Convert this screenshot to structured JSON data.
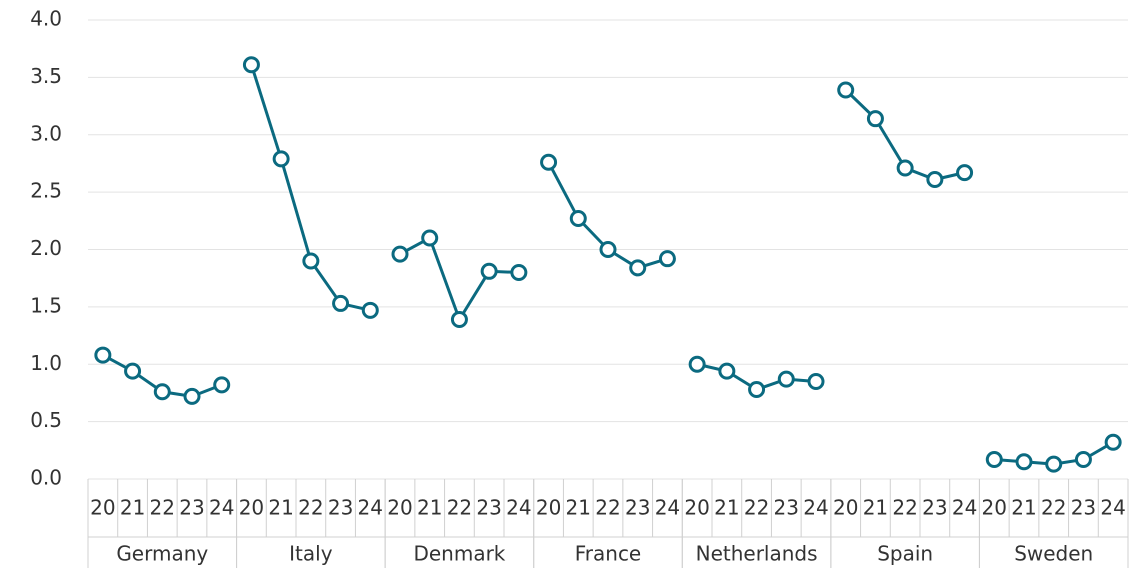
{
  "chart_data": {
    "type": "line",
    "color": "#0b6a80",
    "grid": true,
    "categories": [
      "20",
      "21",
      "22",
      "23",
      "24"
    ],
    "ylim": [
      0,
      4
    ],
    "yticks": [
      {
        "value": 0,
        "label": "0.0"
      },
      0.5,
      {
        "value": 1,
        "label": "1.0"
      },
      1.5,
      {
        "value": 2,
        "label": "2.0"
      },
      2.5,
      {
        "value": 3,
        "label": "3.0"
      },
      3.5,
      {
        "value": 4,
        "label": "4.0"
      }
    ],
    "series": [
      {
        "name": "Germany",
        "values": [
          1.08,
          0.94,
          0.76,
          0.72,
          0.82
        ]
      },
      {
        "name": "Italy",
        "values": [
          3.61,
          2.79,
          1.9,
          1.53,
          1.47
        ]
      },
      {
        "name": "Denmark",
        "values": [
          1.96,
          2.1,
          1.39,
          1.81,
          1.8
        ]
      },
      {
        "name": "France",
        "values": [
          2.76,
          2.27,
          2.0,
          1.84,
          1.92
        ]
      },
      {
        "name": "Netherlands",
        "values": [
          1.0,
          0.94,
          0.78,
          0.87,
          0.85
        ]
      },
      {
        "name": "Spain",
        "values": [
          3.39,
          3.14,
          2.71,
          2.61,
          2.67
        ]
      },
      {
        "name": "Sweden",
        "values": [
          0.17,
          0.15,
          0.13,
          0.17,
          0.32
        ]
      }
    ]
  }
}
